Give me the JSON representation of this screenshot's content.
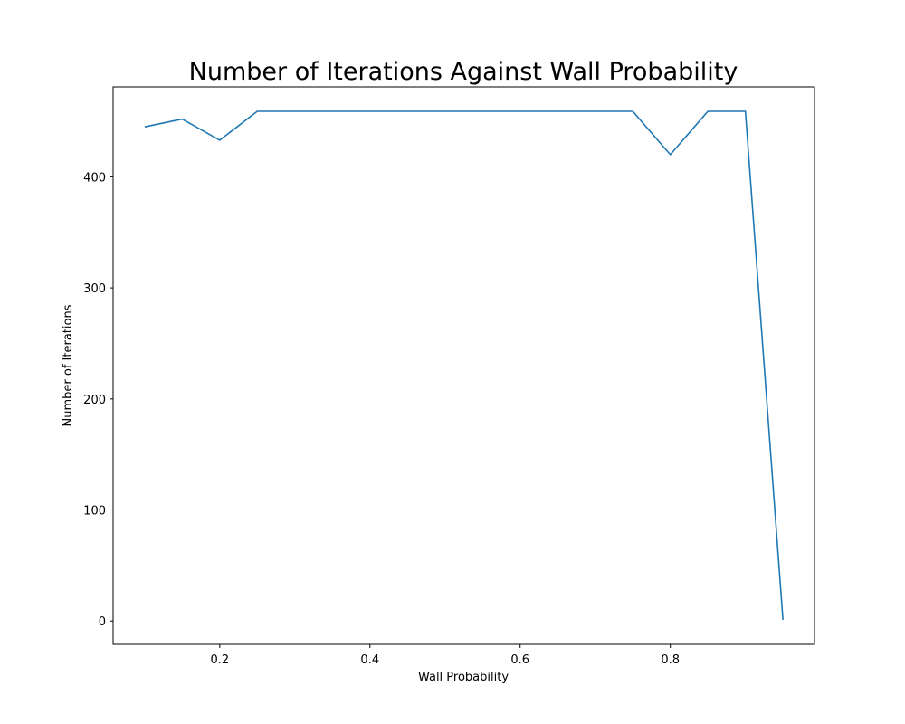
{
  "chart_data": {
    "type": "line",
    "title": "Number of Iterations Against Wall Probability",
    "xlabel": "Wall Probability",
    "ylabel": "Number of Iterations",
    "xlim": [
      0.058,
      0.992
    ],
    "ylim": [
      -21,
      481
    ],
    "xticks": [
      0.2,
      0.4,
      0.6,
      0.8
    ],
    "xtick_labels": [
      "0.2",
      "0.4",
      "0.6",
      "0.8"
    ],
    "yticks": [
      0,
      100,
      200,
      300,
      400
    ],
    "ytick_labels": [
      "0",
      "100",
      "200",
      "300",
      "400"
    ],
    "grid": false,
    "series": [
      {
        "color": "#1f77b4",
        "x": [
          0.1,
          0.15,
          0.2,
          0.25,
          0.3,
          0.35,
          0.4,
          0.45,
          0.5,
          0.55,
          0.6,
          0.65,
          0.7,
          0.75,
          0.8,
          0.85,
          0.9,
          0.95
        ],
        "y": [
          445,
          452,
          433,
          459,
          459,
          459,
          459,
          459,
          459,
          459,
          459,
          459,
          459,
          459,
          420,
          459,
          459,
          1
        ]
      }
    ]
  }
}
